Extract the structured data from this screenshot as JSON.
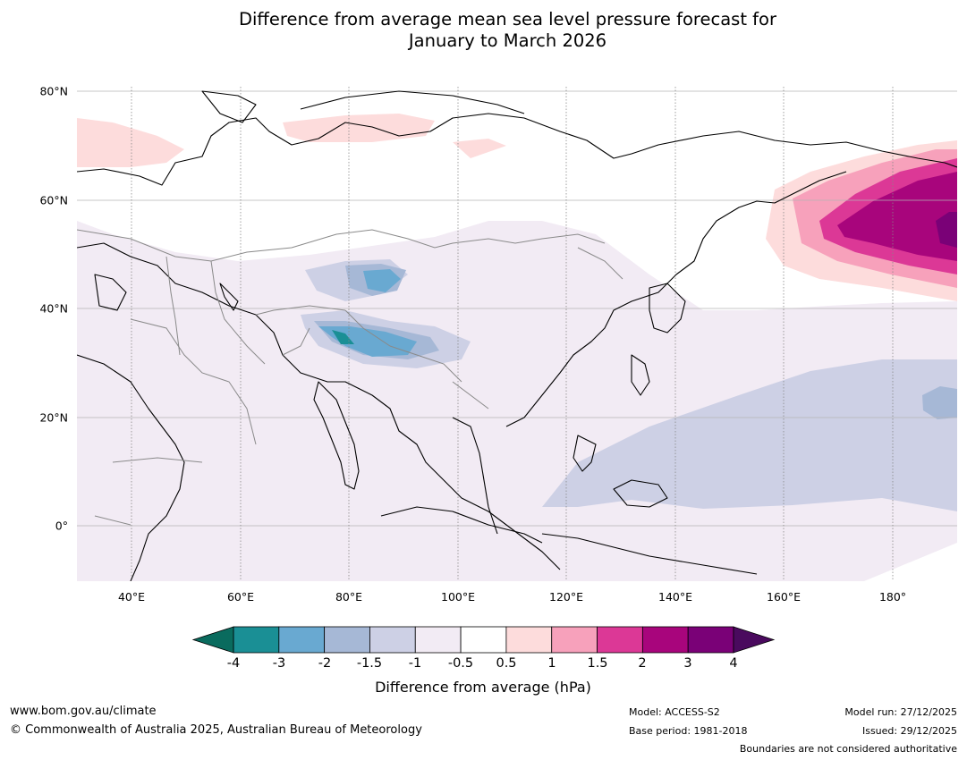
{
  "title_line1": "Difference from average mean sea level pressure forecast for",
  "title_line2": "January to March 2026",
  "map": {
    "lon_ticks": [
      "40°E",
      "60°E",
      "80°E",
      "100°E",
      "120°E",
      "140°E",
      "160°E",
      "180°"
    ],
    "lat_ticks": [
      "80°N",
      "60°N",
      "40°N",
      "20°N",
      "0°"
    ]
  },
  "colorbar": {
    "labels": [
      "-4",
      "-3",
      "-2",
      "-1.5",
      "-1",
      "-0.5",
      "0.5",
      "1",
      "1.5",
      "2",
      "3",
      "4"
    ],
    "under_color": "#0a6b5e",
    "over_color": "#4a0a5e",
    "colors": [
      "#1a8f95",
      "#69a9d1",
      "#a6b8d6",
      "#cdd0e5",
      "#f2ebf4",
      "#ffffff",
      "#fddcdc",
      "#f7a1bb",
      "#dc3896",
      "#a8057c",
      "#7a0177"
    ],
    "title": "Difference from average (hPa)"
  },
  "footer": {
    "website": "www.bom.gov.au/climate",
    "copyright": "© Commonwealth of Australia 2025, Australian Bureau of Meteorology",
    "model": "Model: ACCESS-S2",
    "base_period": "Base period: 1981-2018",
    "model_run": "Model run: 27/12/2025",
    "issued": "Issued: 29/12/2025",
    "disclaimer": "Boundaries are not considered authoritative"
  }
}
